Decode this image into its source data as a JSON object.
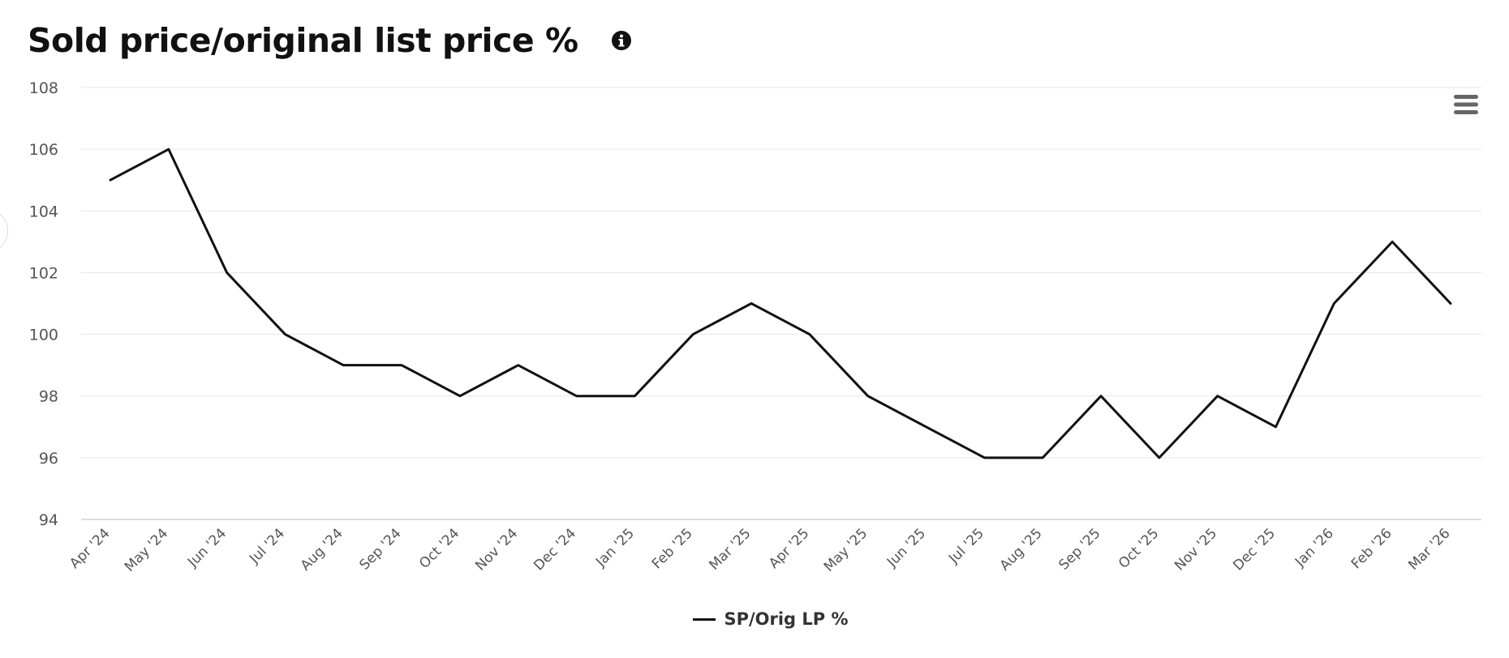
{
  "header": {
    "title": "Sold price/original list price %",
    "info_icon": "info-circle-icon"
  },
  "toolbar": {
    "menu_icon": "hamburger-menu-icon"
  },
  "colors": {
    "line": "#111111",
    "grid": "#e3e6ea",
    "axis": "#c9d2e0",
    "tick_text": "#555555"
  },
  "chart_data": {
    "type": "line",
    "title": "Sold price/original list price %",
    "xlabel": "",
    "ylabel": "",
    "categories": [
      "Apr '24",
      "May '24",
      "Jun '24",
      "Jul '24",
      "Aug '24",
      "Sep '24",
      "Oct '24",
      "Nov '24",
      "Dec '24",
      "Jan '25",
      "Feb '25",
      "Mar '25",
      "Apr '25",
      "May '25",
      "Jun '25",
      "Jul '25",
      "Aug '25",
      "Sep '25",
      "Oct '25",
      "Nov '25",
      "Dec '25",
      "Jan '26",
      "Feb '26",
      "Mar '26"
    ],
    "series": [
      {
        "name": "SP/Orig LP %",
        "values": [
          105,
          106,
          102,
          100,
          99,
          99,
          98,
          99,
          98,
          98,
          100,
          101,
          100,
          98,
          97,
          96,
          96,
          98,
          96,
          98,
          97,
          101,
          103,
          101
        ]
      }
    ],
    "ylim": [
      94,
      108
    ],
    "yticks": [
      94,
      96,
      98,
      100,
      102,
      104,
      106,
      108
    ],
    "grid": true,
    "legend_position": "bottom-center"
  },
  "legend": {
    "label": "SP/Orig LP %"
  }
}
